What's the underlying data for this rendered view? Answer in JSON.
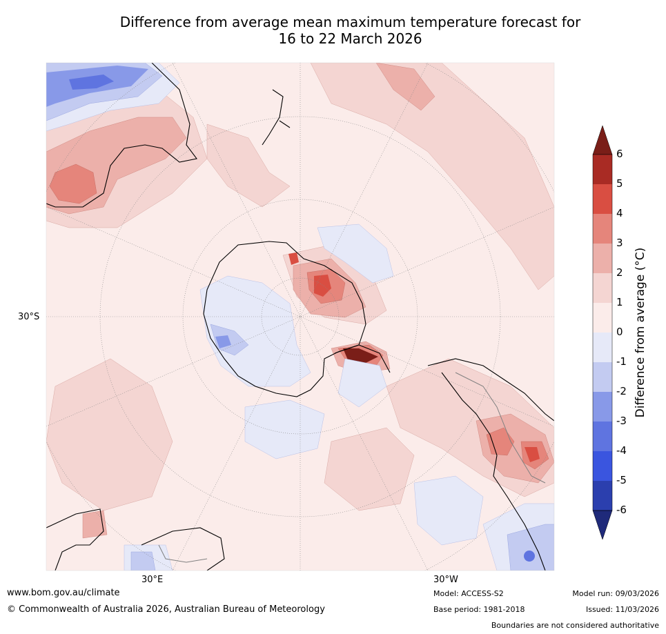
{
  "title": {
    "line1": "Difference from average mean maximum temperature forecast for",
    "line2": "16 to 22 March 2026"
  },
  "map": {
    "lat_label": "30°S",
    "lon_label_left": "30°E",
    "lon_label_right": "30°W",
    "colors": {
      "ocean": "#fbecea",
      "pos_1_2": "#f4d5d2",
      "pos_2_3": "#ecb0aa",
      "pos_3_4": "#e5857b",
      "pos_4_5": "#d94e42",
      "pos_5_6": "#a92b24",
      "pos_6p": "#7a1e18",
      "neg_0_1": "#e6e9f8",
      "neg_1_2": "#c3cbf1",
      "neg_2_3": "#8899e8",
      "neg_3_4": "#5f74e0",
      "coast": "#000000",
      "border": "#808080",
      "grid": "#888888"
    }
  },
  "colorbar": {
    "label": "Difference from average (°C)",
    "ticks": [
      "6",
      "5",
      "4",
      "3",
      "2",
      "1",
      "0",
      "-1",
      "-2",
      "-3",
      "-4",
      "-5",
      "-6"
    ],
    "bins": [
      {
        "range": "5 to 6",
        "color": "#a92b24"
      },
      {
        "range": "4 to 5",
        "color": "#d94e42"
      },
      {
        "range": "3 to 4",
        "color": "#e5857b"
      },
      {
        "range": "2 to 3",
        "color": "#ecb0aa"
      },
      {
        "range": "1 to 2",
        "color": "#f4d5d2"
      },
      {
        "range": "0 to 1",
        "color": "#fbecea"
      },
      {
        "range": "-1 to 0",
        "color": "#e6e9f8"
      },
      {
        "range": "-2 to -1",
        "color": "#c3cbf1"
      },
      {
        "range": "-3 to -2",
        "color": "#8899e8"
      },
      {
        "range": "-4 to -3",
        "color": "#5f74e0"
      },
      {
        "range": "-5 to -4",
        "color": "#3a55df"
      },
      {
        "range": "-6 to -5",
        "color": "#2b3fae"
      }
    ],
    "over_color": "#7a1e18",
    "under_color": "#1f2a7a"
  },
  "footer": {
    "website": "www.bom.gov.au/climate",
    "copyright": "© Commonwealth of Australia 2026, Australian Bureau of Meteorology",
    "model": "Model: ACCESS-S2",
    "base_period": "Base period: 1981-2018",
    "model_run": "Model run: 09/03/2026",
    "issued": "Issued: 11/03/2026",
    "disclaimer": "Boundaries are not considered authoritative"
  }
}
